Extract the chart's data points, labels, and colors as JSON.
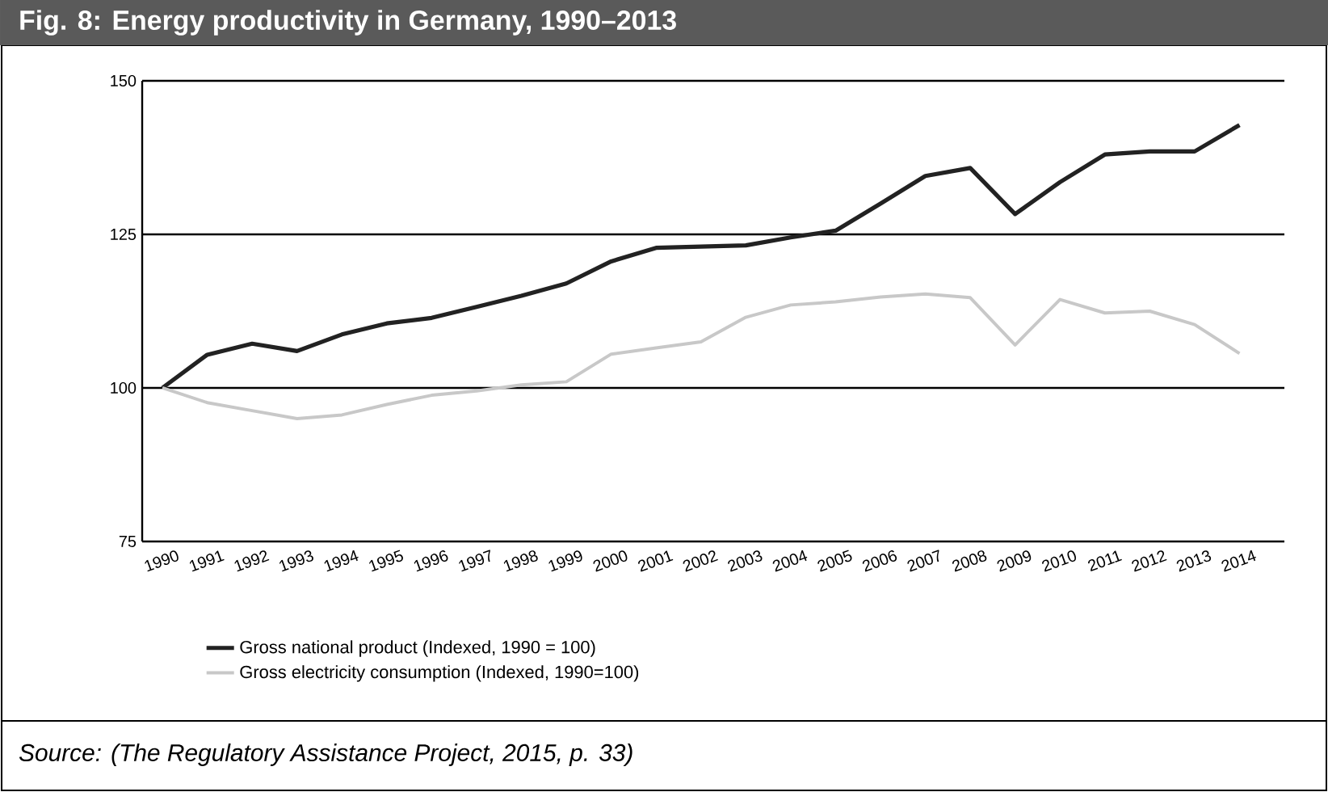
{
  "chart_data": {
    "type": "line",
    "title": "Fig. 8: Energy productivity in Germany, 1990–2013",
    "categories": [
      "1990",
      "1991",
      "1992",
      "1993",
      "1994",
      "1995",
      "1996",
      "1997",
      "1998",
      "1999",
      "2000",
      "2001",
      "2002",
      "2003",
      "2004",
      "2005",
      "2006",
      "2007",
      "2008",
      "2009",
      "2010",
      "2011",
      "2012",
      "2013",
      "2014"
    ],
    "series": [
      {
        "name": "Gross national product (Indexed, 1990 = 100)",
        "color": "#222222",
        "values": [
          100,
          105.4,
          107.2,
          106,
          108.7,
          110.5,
          111.4,
          113.2,
          115,
          117,
          120.6,
          122.8,
          123,
          123.2,
          124.5,
          125.6,
          130,
          134.5,
          135.8,
          128.3,
          133.5,
          138,
          138.5,
          138.5,
          142.8
        ]
      },
      {
        "name": "Gross electricity consumption (Indexed, 1990=100)",
        "color": "#c8c8c8",
        "values": [
          100,
          97.6,
          96.3,
          95,
          95.6,
          97.3,
          98.8,
          99.5,
          100.5,
          101,
          105.5,
          106.5,
          107.5,
          111.5,
          113.5,
          114,
          114.8,
          115.3,
          114.7,
          107,
          114.4,
          112.2,
          112.5,
          110.3,
          105.6
        ]
      }
    ],
    "ylim": [
      75,
      150
    ],
    "yticks": [
      75,
      100,
      125,
      150
    ],
    "grid": "y",
    "legend": "bottom",
    "annotations": [
      "Source: (The Regulatory Assistance Project, 2015, p. 33)"
    ]
  }
}
